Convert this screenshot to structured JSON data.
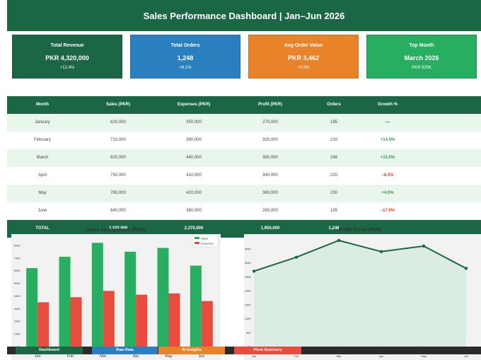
{
  "header": {
    "title": "Sales Performance Dashboard  |  Jan–Jun 2026"
  },
  "kpis": [
    {
      "label": "Total Revenue",
      "value": "PKR 4,320,000",
      "sub": "+12.4%",
      "color": "#1a6645"
    },
    {
      "label": "Total Orders",
      "value": "1,248",
      "sub": "+8.1%",
      "color": "#2a80bf"
    },
    {
      "label": "Avg Order Value",
      "value": "PKR 3,462",
      "sub": "+3.9%",
      "color": "#e8832a"
    },
    {
      "label": "Top Month",
      "value": "March 2026",
      "sub": "PKR 820K",
      "color": "#27ae60"
    }
  ],
  "table": {
    "columns": [
      "Month",
      "Sales (PKR)",
      "Expenses (PKR)",
      "Profit (PKR)",
      "Orders",
      "Growth %"
    ],
    "rows": [
      {
        "month": "January",
        "sales": "620,000",
        "expenses": "350,000",
        "profit": "270,000",
        "orders": "185",
        "growth": "—",
        "trend": "none"
      },
      {
        "month": "February",
        "sales": "710,000",
        "expenses": "390,000",
        "profit": "320,000",
        "orders": "210",
        "growth": "+14.5%",
        "trend": "up"
      },
      {
        "month": "March",
        "sales": "820,000",
        "expenses": "440,000",
        "profit": "380,000",
        "orders": "248",
        "growth": "+15.5%",
        "trend": "up"
      },
      {
        "month": "April",
        "sales": "750,000",
        "expenses": "410,000",
        "profit": "340,000",
        "orders": "220",
        "growth": "–8.5%",
        "trend": "down"
      },
      {
        "month": "May",
        "sales": "780,000",
        "expenses": "420,000",
        "profit": "360,000",
        "orders": "230",
        "growth": "+4.0%",
        "trend": "up"
      },
      {
        "month": "June",
        "sales": "640,000",
        "expenses": "360,000",
        "profit": "280,000",
        "orders": "155",
        "growth": "–17.9%",
        "trend": "down"
      }
    ],
    "total": {
      "month": "TOTAL",
      "sales": "4,320,000",
      "expenses": "2,370,000",
      "profit": "1,950,000",
      "orders": "1,248",
      "growth": ""
    }
  },
  "colors": {
    "sales": "#27ae60",
    "expenses": "#e74c3c",
    "profit_line": "#1a6645",
    "profit_fill": "#dbece2",
    "positive": "#2e9e4e",
    "negative": "#e0442d"
  },
  "chart_data": [
    {
      "type": "bar",
      "title": "Sales vs Expenses (PKR)",
      "categories": [
        "Jan",
        "Feb",
        "Mar",
        "Apr",
        "May",
        "Jun"
      ],
      "series": [
        {
          "name": "Sales",
          "values": [
            620000,
            710000,
            820000,
            750000,
            780000,
            640000
          ]
        },
        {
          "name": "Expenses",
          "values": [
            350000,
            390000,
            440000,
            410000,
            420000,
            360000
          ]
        }
      ],
      "ylim": [
        0,
        850000
      ],
      "yticks": [
        "0K",
        "100K",
        "200K",
        "300K",
        "400K",
        "500K",
        "600K",
        "700K",
        "800K"
      ],
      "legend": "top-right",
      "grid": false
    },
    {
      "type": "area",
      "title": "Profit Trend (PKR)",
      "categories": [
        "Jan",
        "Feb",
        "Mar",
        "Apr",
        "May",
        "Jun"
      ],
      "values": [
        270000,
        320000,
        380000,
        340000,
        360000,
        280000
      ],
      "ylim": [
        0,
        385000
      ],
      "yticks": [
        "0K",
        "50K",
        "100K",
        "150K",
        "200K",
        "250K",
        "300K",
        "350K"
      ],
      "grid": false
    }
  ],
  "tabs": [
    {
      "label": "Dashboard",
      "color": "#1a6645"
    },
    {
      "label": "Raw Data",
      "color": "#2a80bf"
    },
    {
      "label": "AI Insights",
      "color": "#e8832a"
    },
    {
      "label": "Pivot Summary",
      "color": "#e74c3c"
    }
  ]
}
